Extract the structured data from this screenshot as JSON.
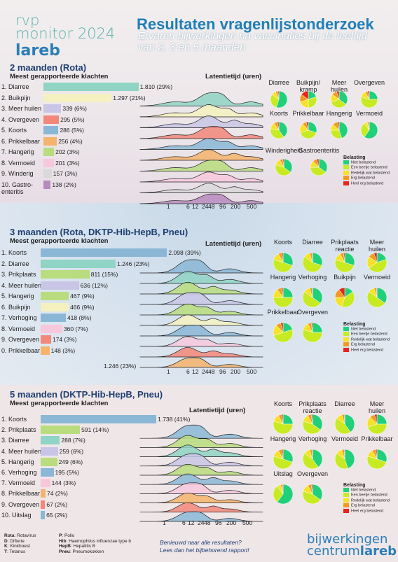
{
  "header": {
    "brand_line1": "rvp",
    "brand_line2": "monitor 2024",
    "brand_line3": "lareb",
    "title": "Resultaten vragenlijstonderzoek",
    "subtitle_line1": "Ervaren bijwerkingen na vaccinaties bij de leeftijd",
    "subtitle_line2": "van 2, 3 en 5 maanden"
  },
  "colors": {
    "pie_niet": "#21d07a",
    "pie_beetje": "#c8ea22",
    "pie_redelijk": "#f6e226",
    "pie_erg": "#f39a1e",
    "pie_heelerg": "#e8241c"
  },
  "legend": {
    "title": "Belasting",
    "items": [
      "Niet belastend",
      "Een beetje belastend",
      "Redelijk wat belastend",
      "Erg belastend",
      "Heel erg belastend"
    ]
  },
  "latency_ticks": [
    "1",
    "6",
    "12",
    "24",
    "48",
    "96",
    "200",
    "500"
  ],
  "chart_data": [
    {
      "type": "bar",
      "title": "2 maanden (Rota)",
      "subtitle": "Meest gerapporteerde klachten",
      "categories": [
        "1. Diarree",
        "2. Buikpijn",
        "3. Meer huilen",
        "4. Overgeven",
        "5. Koorts",
        "6. Prikkelbaar",
        "7. Hangerig",
        "8. Vermoeid",
        "9. Winderig",
        "10. Gastro-enteritis"
      ],
      "values": [
        1810,
        1297,
        339,
        295,
        286,
        256,
        202,
        201,
        157,
        138
      ],
      "labels": [
        "1.810 (29%)",
        "1.297 (21%)",
        "339 (6%)",
        "295 (5%)",
        "286 (5%)",
        "256 (4%)",
        "202 (3%)",
        "201 (3%)",
        "157 (3%)",
        "138 (2%)"
      ],
      "bar_colors": [
        "#8fd4c4",
        "#f4f1bf",
        "#c9c5e6",
        "#f2877a",
        "#8bb7d6",
        "#f4b46c",
        "#b9dc7e",
        "#f7c8dc",
        "#d9d9d9",
        "#b88ac0"
      ],
      "ridge_title": "Latentietijd (uren)",
      "pies_title": "Belasting",
      "pies": [
        {
          "label": "Diarree",
          "values": [
            55,
            30,
            8,
            5,
            2
          ]
        },
        {
          "label": "Buikpijn/\nkramp",
          "values": [
            20,
            30,
            20,
            15,
            15
          ]
        },
        {
          "label": "Meer\nhuilen",
          "values": [
            35,
            35,
            15,
            10,
            5
          ]
        },
        {
          "label": "Overgeven",
          "values": [
            25,
            55,
            12,
            5,
            3
          ]
        },
        {
          "label": "Koorts",
          "values": [
            40,
            38,
            12,
            7,
            3
          ]
        },
        {
          "label": "Prikkelbaar",
          "values": [
            30,
            40,
            18,
            8,
            4
          ]
        },
        {
          "label": "Hangerig",
          "values": [
            45,
            30,
            12,
            10,
            3
          ]
        },
        {
          "label": "Vermoeid",
          "values": [
            60,
            30,
            6,
            3,
            1
          ]
        },
        {
          "label": "Winderigheid",
          "values": [
            35,
            45,
            12,
            6,
            2
          ]
        },
        {
          "label": "Gastroenteritis",
          "values": [
            35,
            40,
            13,
            8,
            4
          ]
        }
      ]
    },
    {
      "type": "bar",
      "title": "3 maanden (Rota, DKTP-Hib-HepB, Pneu)",
      "subtitle": "Meest gerapporteerde klachten",
      "categories": [
        "1. Koorts",
        "2. Diarree",
        "3. Prikplaats",
        "4. Meer huilen",
        "5. Hangerig",
        "6. Buikpijn",
        "7. Verhoging",
        "8. Vermoeid",
        "9. Overgeven",
        "0. Prikkelbaar"
      ],
      "values": [
        2098,
        1246,
        811,
        636,
        467,
        466,
        418,
        360,
        174,
        148
      ],
      "labels": [
        "2.098 (39%)",
        "1.246 (23%)",
        "811 (15%)",
        "636 (12%)",
        "467 (9%)",
        "466 (9%)",
        "418 (8%)",
        "360 (7%)",
        "174 (3%)",
        "148 (3%)"
      ],
      "bar_colors": [
        "#8bb7d6",
        "#8fd4c4",
        "#b9dc7e",
        "#c9c5e6",
        "#b9dc7e",
        "#f4f1bf",
        "#8bb7d6",
        "#f7c8dc",
        "#f2877a",
        "#f4b46c"
      ],
      "extra_label": "1.246 (23%)",
      "ridge_title": "Latentietijd (uren)",
      "pies_title": "Belasting",
      "pies": [
        {
          "label": "Koorts",
          "values": [
            30,
            50,
            12,
            6,
            2
          ]
        },
        {
          "label": "Diarree",
          "values": [
            30,
            55,
            10,
            4,
            1
          ]
        },
        {
          "label": "Prikplaats\nreactie",
          "values": [
            30,
            50,
            12,
            6,
            2
          ]
        },
        {
          "label": "Meer\nhuilen",
          "values": [
            20,
            45,
            20,
            10,
            5
          ]
        },
        {
          "label": "Hangerig",
          "values": [
            25,
            50,
            15,
            8,
            2
          ]
        },
        {
          "label": "Verhoging",
          "values": [
            35,
            50,
            10,
            4,
            1
          ]
        },
        {
          "label": "Buikpijn",
          "values": [
            15,
            40,
            20,
            15,
            10
          ]
        },
        {
          "label": "Vermoeid",
          "values": [
            35,
            50,
            10,
            4,
            1
          ]
        },
        {
          "label": "Prikkelbaar",
          "values": [
            20,
            50,
            18,
            8,
            4
          ]
        },
        {
          "label": "Overgeven",
          "values": [
            25,
            55,
            12,
            6,
            2
          ]
        }
      ]
    },
    {
      "type": "bar",
      "title": "5 maanden (DKTP-Hib-HepB, Pneu)",
      "subtitle": "Meest gerapporteerde klachten",
      "categories": [
        "1. Koorts",
        "2. Prikplaats",
        "3. Diarree",
        "4. Meer huilen",
        "5. Hangerig",
        "6. Verhoging",
        "7. Vermoeid",
        "8. Prikkelbaar",
        "9. Overgeven",
        "10. Uitslag"
      ],
      "values": [
        1738,
        591,
        288,
        259,
        249,
        195,
        144,
        74,
        67,
        65
      ],
      "labels": [
        "1.738 (41%)",
        "591 (14%)",
        "288 (7%)",
        "259 (6%)",
        "249 (6%)",
        "195 (5%)",
        "144 (3%)",
        "74 (2%)",
        "67 (2%)",
        "65 (2%)"
      ],
      "bar_colors": [
        "#8bb7d6",
        "#b9dc7e",
        "#8fd4c4",
        "#c9c5e6",
        "#b9dc7e",
        "#8bb7d6",
        "#f7c8dc",
        "#f4b46c",
        "#f2877a",
        "#8bb7d6"
      ],
      "ridge_title": "Latentietijd (uren)",
      "pies_title": "Belasting",
      "pies": [
        {
          "label": "Koorts",
          "values": [
            25,
            55,
            12,
            6,
            2
          ]
        },
        {
          "label": "Prikplaats\nreactie",
          "values": [
            35,
            45,
            12,
            6,
            2
          ]
        },
        {
          "label": "Diarree",
          "values": [
            40,
            45,
            10,
            4,
            1
          ]
        },
        {
          "label": "Meer\nhuilen",
          "values": [
            25,
            45,
            18,
            8,
            4
          ]
        },
        {
          "label": "Hangerig",
          "values": [
            30,
            50,
            12,
            6,
            2
          ]
        },
        {
          "label": "Verhoging",
          "values": [
            40,
            45,
            10,
            4,
            1
          ]
        },
        {
          "label": "Vermoeid",
          "values": [
            45,
            40,
            10,
            4,
            1
          ]
        },
        {
          "label": "Prikkelbaar",
          "values": [
            30,
            50,
            12,
            6,
            2
          ]
        },
        {
          "label": "Uitslag",
          "values": [
            60,
            30,
            6,
            3,
            1
          ]
        },
        {
          "label": "Overgeven",
          "values": [
            35,
            45,
            12,
            6,
            2
          ]
        }
      ]
    }
  ],
  "footer": {
    "abbr": [
      [
        "Rota",
        "Rotavirus"
      ],
      [
        "D",
        "Difterie"
      ],
      [
        "K",
        "Kinkhoest"
      ],
      [
        "T",
        "Tetanus"
      ],
      [
        "P",
        "Polio"
      ],
      [
        "Hib",
        "Haemophilus influenzae type b"
      ],
      [
        "HepB",
        "Hepatitis B"
      ],
      [
        "Pneu",
        "Pneumokokken"
      ]
    ],
    "note_line1": "Benieuwd naar alle resultaten?",
    "note_line2": "Lees dan het bijbehorend rapport!",
    "logo_line1": "bijwerkingen",
    "logo_line2a": "centrum",
    "logo_line2b": "lareb"
  }
}
